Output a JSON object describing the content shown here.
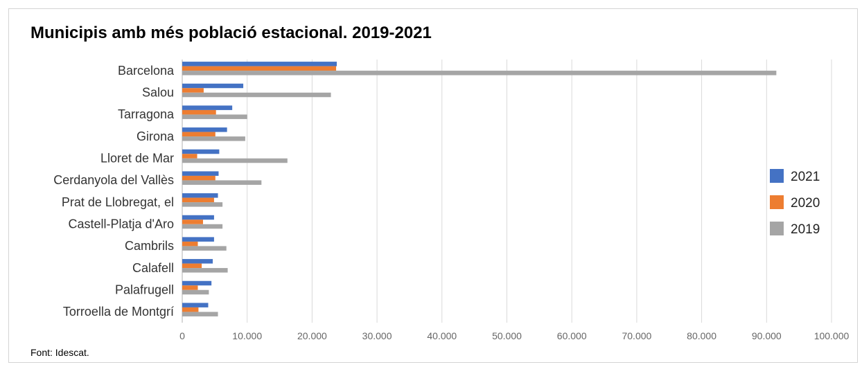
{
  "chart_data": {
    "type": "bar",
    "orientation": "horizontal",
    "title": "Municipis amb més població estacional. 2019-2021",
    "source": "Font: Idescat.",
    "categories": [
      "Barcelona",
      "Salou",
      "Tarragona",
      "Girona",
      "Lloret de Mar",
      "Cerdanyola del Vallès",
      "Prat de Llobregat, el",
      "Castell-Platja d'Aro",
      "Cambrils",
      "Calafell",
      "Palafrugell",
      "Torroella de Montgrí"
    ],
    "series": [
      {
        "name": "2021",
        "color": "#4472c4",
        "values": [
          23800,
          9400,
          7700,
          6900,
          5700,
          5600,
          5500,
          4900,
          4900,
          4700,
          4500,
          4000
        ]
      },
      {
        "name": "2020",
        "color": "#ed7d31",
        "values": [
          23700,
          3300,
          5200,
          5100,
          2300,
          5100,
          4900,
          3200,
          2400,
          3000,
          2400,
          2500
        ]
      },
      {
        "name": "2019",
        "color": "#a5a5a5",
        "values": [
          91500,
          22900,
          10000,
          9700,
          16200,
          12200,
          6200,
          6200,
          6800,
          7000,
          4100,
          5500
        ]
      }
    ],
    "xlim": [
      0,
      100000
    ],
    "xticks": [
      0,
      10000,
      20000,
      30000,
      40000,
      50000,
      60000,
      70000,
      80000,
      90000,
      100000
    ],
    "xtick_labels": [
      "0",
      "10.000",
      "20.000",
      "30.000",
      "40.000",
      "50.000",
      "60.000",
      "70.000",
      "80.000",
      "90.000",
      "100.000"
    ],
    "xlabel": "",
    "ylabel": "",
    "grid": true,
    "legend_position": "right"
  }
}
